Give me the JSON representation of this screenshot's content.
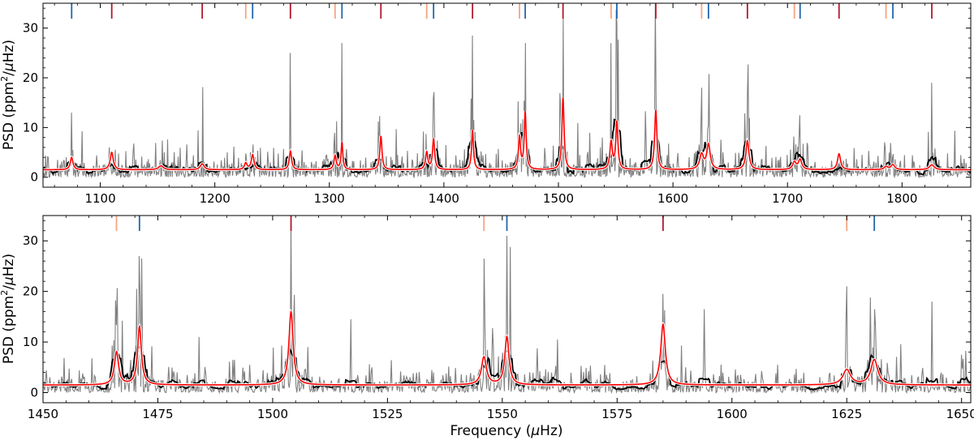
{
  "chart_data": [
    {
      "type": "line",
      "panel": "top",
      "title": "",
      "xlabel": "",
      "ylabel_parts": [
        "PSD (ppm",
        "2",
        "/",
        "μ",
        "Hz)"
      ],
      "xlim": [
        1050,
        1860
      ],
      "ylim": [
        -2,
        35
      ],
      "xticks": [
        1100,
        1200,
        1300,
        1400,
        1500,
        1600,
        1700,
        1800
      ],
      "yticks": [
        0,
        10,
        20,
        30
      ],
      "grid": false,
      "background": 1.5,
      "modes": [
        {
          "f": 1075,
          "h": 2.5,
          "w": 1.4,
          "deg": 1
        },
        {
          "f": 1110,
          "h": 3.5,
          "w": 1.6,
          "deg": 0
        },
        {
          "f": 1153,
          "h": 0.8,
          "w": 2.5,
          "deg": 1
        },
        {
          "f": 1189,
          "h": 1.2,
          "w": 2.0,
          "deg": 0
        },
        {
          "f": 1227,
          "h": 1.3,
          "w": 1.4,
          "deg": 2
        },
        {
          "f": 1233,
          "h": 3.0,
          "w": 1.4,
          "deg": 1
        },
        {
          "f": 1266,
          "h": 3.8,
          "w": 1.2,
          "deg": 0
        },
        {
          "f": 1305,
          "h": 2.8,
          "w": 1.2,
          "deg": 2
        },
        {
          "f": 1311,
          "h": 5.5,
          "w": 0.9,
          "deg": 1
        },
        {
          "f": 1345,
          "h": 6.8,
          "w": 1.1,
          "deg": 0
        },
        {
          "f": 1385,
          "h": 3.5,
          "w": 1.2,
          "deg": 2
        },
        {
          "f": 1391,
          "h": 6.2,
          "w": 1.1,
          "deg": 1
        },
        {
          "f": 1425,
          "h": 8.0,
          "w": 1.0,
          "deg": 0
        },
        {
          "f": 1466,
          "h": 6.5,
          "w": 1.1,
          "deg": 2
        },
        {
          "f": 1471,
          "h": 11.5,
          "w": 1.0,
          "deg": 1
        },
        {
          "f": 1504,
          "h": 14.5,
          "w": 1.1,
          "deg": 0
        },
        {
          "f": 1546,
          "h": 5.5,
          "w": 1.3,
          "deg": 2
        },
        {
          "f": 1551,
          "h": 9.5,
          "w": 1.1,
          "deg": 1
        },
        {
          "f": 1585,
          "h": 12.0,
          "w": 1.2,
          "deg": 0
        },
        {
          "f": 1625,
          "h": 3.0,
          "w": 2.0,
          "deg": 2
        },
        {
          "f": 1631,
          "h": 5.0,
          "w": 1.8,
          "deg": 1
        },
        {
          "f": 1665,
          "h": 5.8,
          "w": 1.6,
          "deg": 0
        },
        {
          "f": 1706,
          "h": 1.5,
          "w": 1.8,
          "deg": 2
        },
        {
          "f": 1711,
          "h": 2.0,
          "w": 1.8,
          "deg": 1
        },
        {
          "f": 1745,
          "h": 3.2,
          "w": 1.6,
          "deg": 0
        },
        {
          "f": 1786,
          "h": 0.6,
          "w": 2.0,
          "deg": 2
        },
        {
          "f": 1792,
          "h": 1.0,
          "w": 2.0,
          "deg": 1
        },
        {
          "f": 1826,
          "h": 1.0,
          "w": 2.5,
          "deg": 0
        }
      ],
      "marker_lines": {
        "l0": [
          1110,
          1189,
          1266,
          1345,
          1425,
          1504,
          1585,
          1665,
          1745,
          1826
        ],
        "l1": [
          1075,
          1233,
          1311,
          1391,
          1471,
          1551,
          1631,
          1711,
          1792
        ],
        "l2": [
          1227,
          1305,
          1385,
          1466,
          1546,
          1625,
          1706,
          1786
        ]
      },
      "spikes": [
        {
          "f": 1266,
          "v": 25
        },
        {
          "f": 1311,
          "v": 27
        },
        {
          "f": 1425,
          "v": 28.5
        },
        {
          "f": 1471,
          "v": 27
        },
        {
          "f": 1504,
          "v": 32
        },
        {
          "f": 1546,
          "v": 27
        },
        {
          "f": 1551,
          "v": 31
        },
        {
          "f": 1585,
          "v": 18
        },
        {
          "f": 1625,
          "v": 18
        },
        {
          "f": 1665,
          "v": 17
        },
        {
          "f": 1826,
          "v": 19
        },
        {
          "f": 1075,
          "v": 13
        },
        {
          "f": 1391,
          "v": 16
        }
      ]
    },
    {
      "type": "line",
      "panel": "bottom",
      "title": "",
      "xlabel_parts": [
        "Frequency (",
        "μ",
        "Hz)"
      ],
      "ylabel_parts": [
        "PSD (ppm",
        "2",
        "/",
        "μ",
        "Hz)"
      ],
      "xlim": [
        1450,
        1652
      ],
      "ylim": [
        -2,
        35
      ],
      "xticks": [
        1450,
        1475,
        1500,
        1525,
        1550,
        1575,
        1600,
        1625,
        1650
      ],
      "yticks": [
        0,
        10,
        20,
        30
      ],
      "grid": false,
      "background": 1.5,
      "modes": [
        {
          "f": 1466,
          "h": 6.5,
          "w": 0.55,
          "deg": 2
        },
        {
          "f": 1471,
          "h": 11.5,
          "w": 0.5,
          "deg": 1
        },
        {
          "f": 1504,
          "h": 14.5,
          "w": 0.55,
          "deg": 0
        },
        {
          "f": 1546,
          "h": 5.5,
          "w": 0.65,
          "deg": 2
        },
        {
          "f": 1551,
          "h": 9.5,
          "w": 0.55,
          "deg": 1
        },
        {
          "f": 1585,
          "h": 12.0,
          "w": 0.6,
          "deg": 0
        },
        {
          "f": 1625,
          "h": 3.0,
          "w": 1.0,
          "deg": 2
        },
        {
          "f": 1631,
          "h": 5.0,
          "w": 0.9,
          "deg": 1
        }
      ],
      "marker_lines": {
        "l0": [
          1504,
          1585
        ],
        "l1": [
          1471,
          1551,
          1631
        ],
        "l2": [
          1466,
          1546,
          1625
        ]
      },
      "spikes": [
        {
          "f": 1471,
          "v": 27
        },
        {
          "f": 1471.4,
          "v": 26.5
        },
        {
          "f": 1504,
          "v": 34
        },
        {
          "f": 1546,
          "v": 26.5
        },
        {
          "f": 1551,
          "v": 31
        },
        {
          "f": 1585,
          "v": 19.5
        },
        {
          "f": 1625,
          "v": 21
        },
        {
          "f": 1631,
          "v": 16.5
        },
        {
          "f": 1643.5,
          "v": 18
        },
        {
          "f": 1517,
          "v": 14.5
        },
        {
          "f": 1594,
          "v": 16.5
        },
        {
          "f": 1484,
          "v": 11
        },
        {
          "f": 1562,
          "v": 10.5
        }
      ]
    }
  ],
  "colors": {
    "psd_raw": "#808080",
    "psd_smoothed": "#000000",
    "model_outline": "#ffffff",
    "model": "#ff0000",
    "marker_l0": "#b2182b",
    "marker_l1": "#2166ac",
    "marker_l2": "#f4a582"
  }
}
